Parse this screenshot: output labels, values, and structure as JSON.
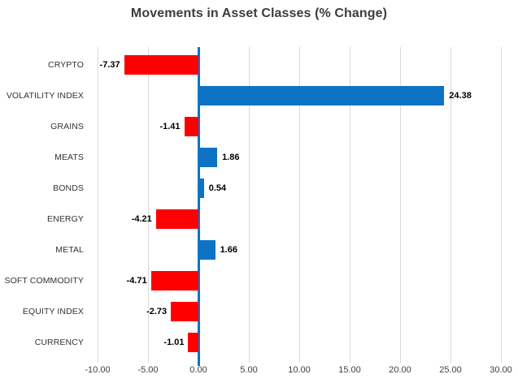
{
  "title": "Movements in Asset Classes (% Change)",
  "colors": {
    "positive_bar": "#0e72c5",
    "negative_bar": "#ff0000",
    "zero_line": "#0e72c5",
    "gridline": "#d9d9d9",
    "title_text": "#3d3d3d",
    "category_text": "#333333",
    "value_text": "#000000",
    "tick_text": "#404040",
    "background": "#ffffff"
  },
  "chart_data": {
    "type": "bar",
    "orientation": "horizontal",
    "title": "Movements in Asset Classes (% Change)",
    "categories": [
      "CRYPTO",
      "VOLATILITY INDEX",
      "GRAINS",
      "MEATS",
      "BONDS",
      "ENERGY",
      "METAL",
      "SOFT COMMODITY",
      "EQUITY INDEX",
      "CURRENCY"
    ],
    "values": [
      -7.37,
      24.38,
      -1.41,
      1.86,
      0.54,
      -4.21,
      1.66,
      -4.71,
      -2.73,
      -1.01
    ],
    "value_labels": [
      "-7.37",
      "24.38",
      "-1.41",
      "1.86",
      "0.54",
      "-4.21",
      "1.66",
      "-4.71",
      "-2.73",
      "-1.01"
    ],
    "xlabel": "",
    "ylabel": "",
    "xlim": [
      -10,
      30
    ],
    "xticks": [
      -10,
      -5,
      0,
      5,
      10,
      15,
      20,
      25,
      30
    ],
    "xtick_labels": [
      "-10.00",
      "-5.00",
      "0.00",
      "5.00",
      "10.00",
      "15.00",
      "20.00",
      "25.00",
      "30.00"
    ],
    "grid": true,
    "legend": false,
    "value_labels_shown": true
  }
}
